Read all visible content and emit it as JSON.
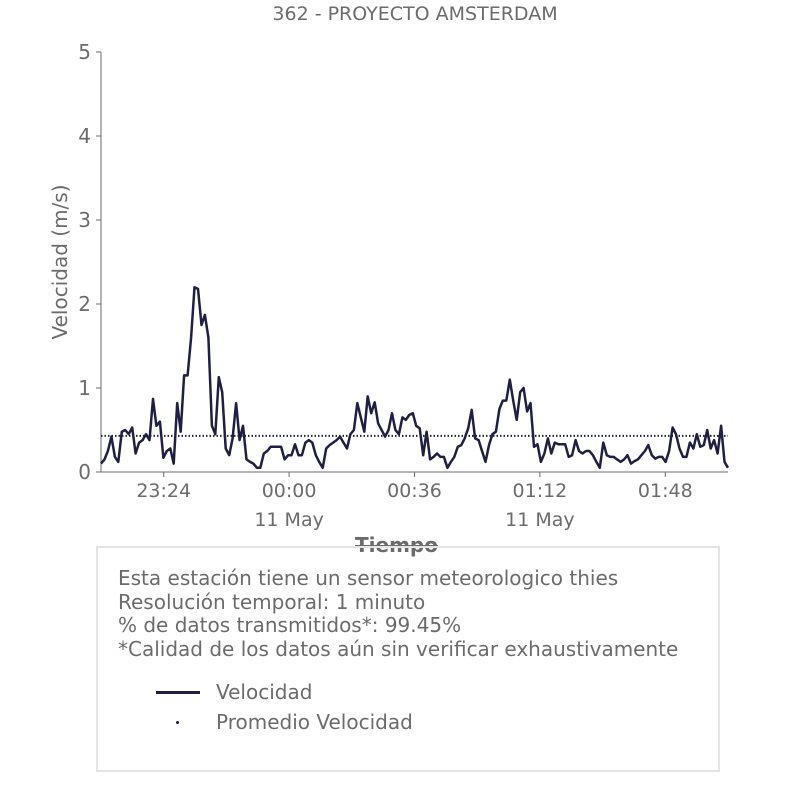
{
  "chart_data": {
    "type": "line",
    "title": "362 - PROYECTO AMSTERDAM",
    "xlabel": "Tiempo",
    "ylabel": "Velocidad (m/s)",
    "ylim": [
      0,
      5
    ],
    "yticks": [
      "0",
      "1",
      "2",
      "3",
      "4",
      "5"
    ],
    "xticks": [
      {
        "label": "23:24",
        "sublabel": ""
      },
      {
        "label": "00:00",
        "sublabel": "11 May"
      },
      {
        "label": "00:36",
        "sublabel": ""
      },
      {
        "label": "01:12",
        "sublabel": "11 May"
      },
      {
        "label": "01:48",
        "sublabel": ""
      }
    ],
    "x_minutes_range": [
      -18,
      162
    ],
    "xtick_minutes": [
      0,
      36,
      72,
      108,
      144
    ],
    "grid": false,
    "series": [
      {
        "name": "Velocidad",
        "style": "solid",
        "color": "#1f1f44",
        "values": [
          0.1,
          0.15,
          0.25,
          0.42,
          0.18,
          0.12,
          0.48,
          0.5,
          0.45,
          0.53,
          0.22,
          0.35,
          0.38,
          0.45,
          0.38,
          0.87,
          0.55,
          0.6,
          0.17,
          0.25,
          0.28,
          0.1,
          0.82,
          0.48,
          1.15,
          1.15,
          1.6,
          2.2,
          2.18,
          1.75,
          1.87,
          1.6,
          0.55,
          0.45,
          1.13,
          0.95,
          0.28,
          0.2,
          0.4,
          0.82,
          0.38,
          0.55,
          0.15,
          0.12,
          0.1,
          0.05,
          0.05,
          0.22,
          0.25,
          0.3,
          0.3,
          0.3,
          0.3,
          0.15,
          0.2,
          0.2,
          0.33,
          0.2,
          0.2,
          0.35,
          0.38,
          0.35,
          0.2,
          0.12,
          0.05,
          0.28,
          0.32,
          0.35,
          0.38,
          0.42,
          0.35,
          0.28,
          0.45,
          0.5,
          0.82,
          0.65,
          0.48,
          0.9,
          0.7,
          0.83,
          0.58,
          0.5,
          0.42,
          0.5,
          0.7,
          0.5,
          0.45,
          0.65,
          0.62,
          0.68,
          0.7,
          0.55,
          0.52,
          0.2,
          0.48,
          0.15,
          0.18,
          0.22,
          0.18,
          0.18,
          0.05,
          0.12,
          0.18,
          0.3,
          0.32,
          0.4,
          0.52,
          0.74,
          0.4,
          0.38,
          0.25,
          0.12,
          0.32,
          0.45,
          0.48,
          0.75,
          0.85,
          0.85,
          1.1,
          0.85,
          0.62,
          0.95,
          1.0,
          0.72,
          0.82,
          0.3,
          0.33,
          0.12,
          0.22,
          0.4,
          0.22,
          0.35,
          0.33,
          0.33,
          0.33,
          0.18,
          0.2,
          0.38,
          0.25,
          0.22,
          0.25,
          0.25,
          0.2,
          0.12,
          0.05,
          0.35,
          0.2,
          0.18,
          0.18,
          0.15,
          0.12,
          0.15,
          0.2,
          0.1,
          0.13,
          0.15,
          0.2,
          0.25,
          0.32,
          0.2,
          0.16,
          0.18,
          0.18,
          0.12,
          0.25,
          0.53,
          0.45,
          0.28,
          0.18,
          0.18,
          0.35,
          0.28,
          0.45,
          0.3,
          0.32,
          0.5,
          0.28,
          0.38,
          0.22,
          0.55,
          0.12,
          0.05
        ]
      },
      {
        "name": "Promedio Velocidad",
        "style": "dotted",
        "color": "#1f1f44",
        "constant": 0.43
      }
    ]
  },
  "info_box": {
    "line1": "Esta estación tiene un sensor meteorologico thies",
    "line2": "Resolución temporal: 1 minuto",
    "line3": "% de datos transmitidos*: 99.45%",
    "line4": "*Calidad de los datos aún sin verificar exhaustivamente"
  },
  "legend": {
    "item1": "Velocidad",
    "item2": "Promedio Velocidad"
  }
}
